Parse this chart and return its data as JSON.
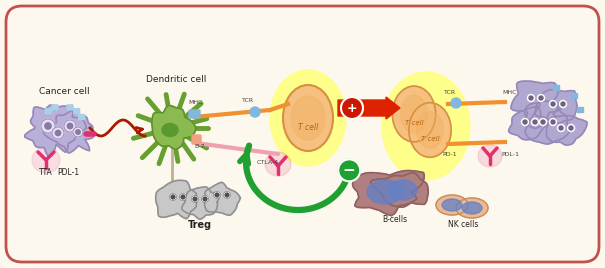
{
  "bg_color": "#fdf8ee",
  "border_color": "#c0514d",
  "labels": {
    "cancer_cell": "Cancer cell",
    "dendritic_cell": "Dendritic cell",
    "t_cell": "T cell",
    "treg": "Treg",
    "b_cells": "B-cells",
    "nk_cells": "NK cells",
    "tta": "TTA",
    "pdl1": "PDL-1",
    "mhc_left": "MHC",
    "tcr_left": "TCR",
    "b7": "B-7",
    "ctla4": "CTLA-4",
    "pd1": "PD-1",
    "pdl1_right": "PDL-1",
    "tcr_right": "TCR",
    "mhc_right": "MHC"
  },
  "colors": {
    "cancer_cell_body": "#b8b0d8",
    "cancer_cell_outline": "#9888b8",
    "dendritic_body": "#8aba50",
    "dendritic_outline": "#60902a",
    "dendritic_nucleus": "#5a9830",
    "t_cell_body": "#f5c080",
    "t_cell_outline": "#d89040",
    "t_cell_glow": "#ffff80",
    "treg_body": "#c8c8c8",
    "treg_outline": "#909090",
    "arrow_red": "#dd2200",
    "arrow_orange": "#f09030",
    "arrow_pink": "#f0a0b0",
    "arrow_green": "#20a030",
    "antibody_pink": "#e03070",
    "b_cell_body": "#a87878",
    "b_cell_nucleus": "#6080c8",
    "nk_body": "#f0b890",
    "nk_nucleus": "#6080c8",
    "cancer_right_body": "#b0a8d0",
    "cancer_right_outline": "#9888b8",
    "receptor_blue": "#80b8e0",
    "text_dark": "#222222",
    "text_med": "#444444",
    "white": "#ffffff",
    "plus_bg": "#cc2000",
    "minus_bg": "#20a030"
  }
}
